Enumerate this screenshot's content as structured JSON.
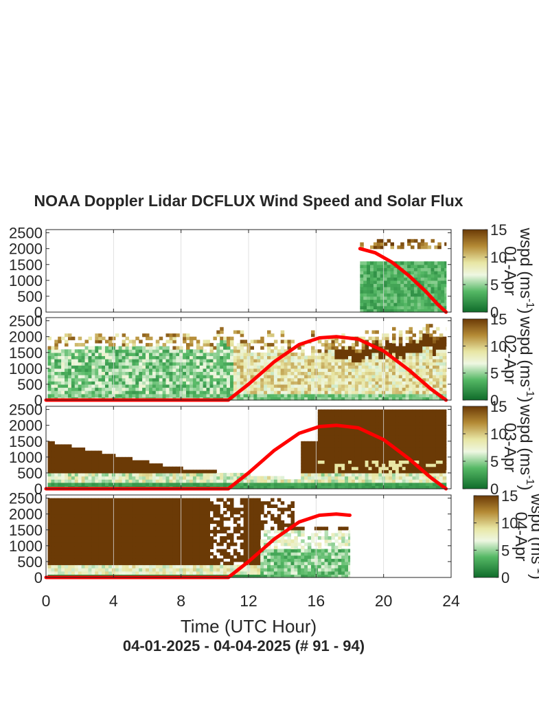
{
  "title": "NOAA Doppler Lidar DCFLUX Wind Speed and Solar Flux",
  "subtitle": "04-01-2025 - 04-04-2025   (# 91 - 94)",
  "xlabel": "Time (UTC Hour)",
  "colorbar": {
    "label": "wspd (ms",
    "superscript": "-1",
    "close": ")",
    "ticks": [
      "0",
      "5",
      "10",
      "15"
    ],
    "range": [
      0,
      15
    ]
  },
  "colors": {
    "solar_line": "#ff0000",
    "low_wind": "#1a7a32",
    "mid_wind": "#f4f6dc",
    "high_wind": "#6b3a06"
  },
  "chart_data": [
    {
      "type": "heatmap",
      "panel_label": "01-Apr",
      "xlim": [
        0,
        24
      ],
      "ylim": [
        0,
        2600
      ],
      "xticks": [
        0,
        4,
        8,
        12,
        16,
        20,
        24
      ],
      "yticks": [
        "0",
        "500",
        "1000",
        "1500",
        "2000",
        "2500"
      ],
      "grid": true,
      "data_x_range": [
        18.6,
        23.7
      ],
      "solar_flux": {
        "x": [
          18.6,
          19.5,
          20.5,
          21.5,
          22.5,
          23.2,
          23.7
        ],
        "y": [
          2000,
          1870,
          1570,
          1150,
          650,
          250,
          0
        ]
      }
    },
    {
      "type": "heatmap",
      "panel_label": "02-Apr",
      "xlim": [
        0,
        24
      ],
      "ylim": [
        0,
        2600
      ],
      "xticks": [
        0,
        4,
        8,
        12,
        16,
        20,
        24
      ],
      "yticks": [
        "0",
        "500",
        "1000",
        "1500",
        "2000",
        "2500"
      ],
      "grid": true,
      "data_x_range": [
        0.1,
        23.7
      ],
      "solar_flux": {
        "x": [
          0,
          10.8,
          12,
          13.5,
          15,
          16.2,
          17.2,
          18.5,
          20,
          21.5,
          22.8,
          23.7
        ],
        "y": [
          0,
          0,
          500,
          1200,
          1750,
          1960,
          2000,
          1920,
          1550,
          950,
          350,
          0
        ]
      }
    },
    {
      "type": "heatmap",
      "panel_label": "03-Apr",
      "xlim": [
        0,
        24
      ],
      "ylim": [
        0,
        2600
      ],
      "xticks": [
        0,
        4,
        8,
        12,
        16,
        20,
        24
      ],
      "yticks": [
        "0",
        "500",
        "1000",
        "1500",
        "2000",
        "2500"
      ],
      "grid": true,
      "data_x_range": [
        0.1,
        23.7
      ],
      "solar_flux": {
        "x": [
          0,
          10.8,
          12,
          13.5,
          15,
          16.2,
          17.2,
          18.5,
          20,
          21.5,
          22.8,
          23.7
        ],
        "y": [
          0,
          0,
          500,
          1200,
          1750,
          1960,
          2000,
          1920,
          1550,
          950,
          350,
          0
        ]
      }
    },
    {
      "type": "heatmap",
      "panel_label": "04-Apr",
      "xlim": [
        0,
        24
      ],
      "ylim": [
        0,
        2600
      ],
      "xticks": [
        0,
        4,
        8,
        12,
        16,
        20,
        24
      ],
      "yticks": [
        "0",
        "500",
        "1000",
        "1500",
        "2000",
        "2500"
      ],
      "grid": true,
      "data_x_range": [
        0.1,
        18.0
      ],
      "solar_flux": {
        "x": [
          0,
          10.8,
          12,
          13.5,
          15,
          16.2,
          17.2,
          18.0
        ],
        "y": [
          0,
          0,
          500,
          1200,
          1750,
          1960,
          2000,
          1960
        ]
      }
    }
  ]
}
